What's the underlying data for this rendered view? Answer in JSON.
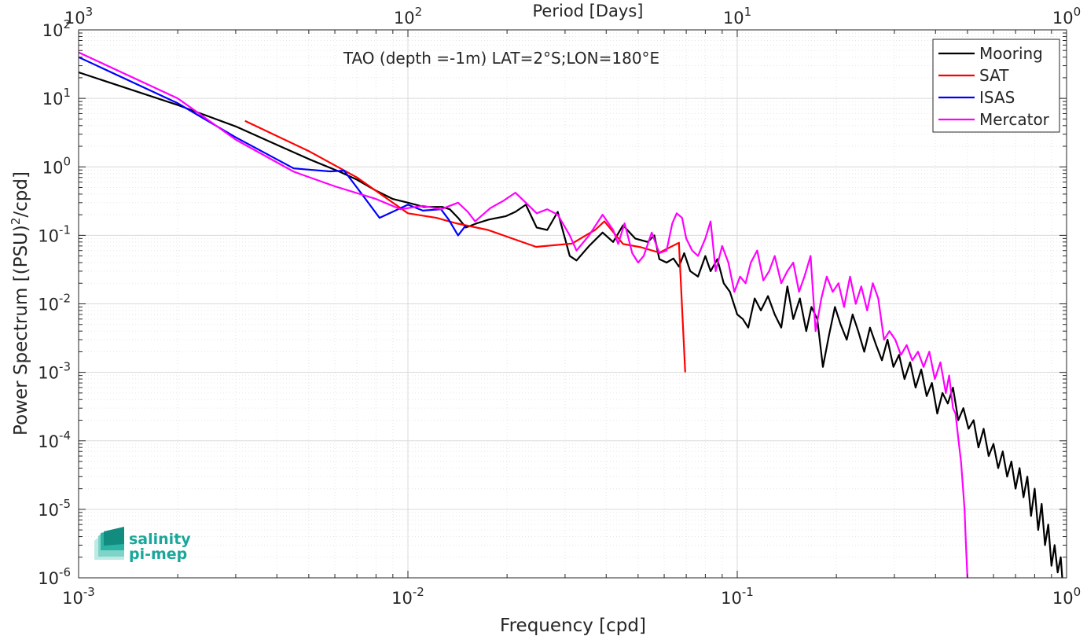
{
  "chart_data": {
    "type": "line",
    "title": "TAO (depth =-1m) LAT=2°S;LON=180°E",
    "xlabel": "Frequency [cpd]",
    "ylabel": "Power Spectrum [(PSU)",
    "ylabel_sup": "2",
    "ylabel_tail": "/cpd]",
    "top_axis_label": "Period [Days]",
    "x_scale": "log",
    "y_scale": "log",
    "xlim": [
      0.001,
      1
    ],
    "ylim": [
      1e-06,
      100
    ],
    "grid": true,
    "legend_position": "top-right",
    "x_ticks": [
      {
        "value": 0.001,
        "base": "10",
        "exp": "-3"
      },
      {
        "value": 0.01,
        "base": "10",
        "exp": "-2"
      },
      {
        "value": 0.1,
        "base": "10",
        "exp": "-1"
      },
      {
        "value": 1,
        "base": "10",
        "exp": "0"
      }
    ],
    "top_ticks": [
      {
        "value": 0.001,
        "base": "10",
        "exp": "3"
      },
      {
        "value": 0.01,
        "base": "10",
        "exp": "2"
      },
      {
        "value": 0.1,
        "base": "10",
        "exp": "1"
      },
      {
        "value": 1,
        "base": "10",
        "exp": "0"
      }
    ],
    "y_ticks": [
      {
        "value": 100,
        "base": "10",
        "exp": "2"
      },
      {
        "value": 10,
        "base": "10",
        "exp": "1"
      },
      {
        "value": 1,
        "base": "10",
        "exp": "0"
      },
      {
        "value": 0.1,
        "base": "10",
        "exp": "-1"
      },
      {
        "value": 0.01,
        "base": "10",
        "exp": "-2"
      },
      {
        "value": 0.001,
        "base": "10",
        "exp": "-3"
      },
      {
        "value": 0.0001,
        "base": "10",
        "exp": "-4"
      },
      {
        "value": 1e-05,
        "base": "10",
        "exp": "-5"
      },
      {
        "value": 1e-06,
        "base": "10",
        "exp": "-6"
      }
    ],
    "series": [
      {
        "name": "Mooring",
        "color": "#000000",
        "points": [
          [
            0.001,
            24
          ],
          [
            0.002,
            8
          ],
          [
            0.003,
            3.9
          ],
          [
            0.004,
            2.1
          ],
          [
            0.005,
            1.3
          ],
          [
            0.0062,
            0.85
          ],
          [
            0.007,
            0.65
          ],
          [
            0.008,
            0.45
          ],
          [
            0.009,
            0.34
          ],
          [
            0.01,
            0.3
          ],
          [
            0.0112,
            0.26
          ],
          [
            0.0127,
            0.26
          ],
          [
            0.0134,
            0.24
          ],
          [
            0.0142,
            0.18
          ],
          [
            0.015,
            0.13
          ],
          [
            0.0162,
            0.15
          ],
          [
            0.0176,
            0.17
          ],
          [
            0.0198,
            0.19
          ],
          [
            0.0212,
            0.22
          ],
          [
            0.0228,
            0.28
          ],
          [
            0.0246,
            0.13
          ],
          [
            0.0265,
            0.12
          ],
          [
            0.0285,
            0.22
          ],
          [
            0.031,
            0.05
          ],
          [
            0.0325,
            0.043
          ],
          [
            0.0355,
            0.07
          ],
          [
            0.039,
            0.11
          ],
          [
            0.042,
            0.08
          ],
          [
            0.045,
            0.14
          ],
          [
            0.049,
            0.09
          ],
          [
            0.0535,
            0.08
          ],
          [
            0.056,
            0.1
          ],
          [
            0.058,
            0.045
          ],
          [
            0.061,
            0.04
          ],
          [
            0.064,
            0.046
          ],
          [
            0.0665,
            0.035
          ],
          [
            0.069,
            0.055
          ],
          [
            0.072,
            0.03
          ],
          [
            0.076,
            0.025
          ],
          [
            0.08,
            0.05
          ],
          [
            0.083,
            0.03
          ],
          [
            0.087,
            0.045
          ],
          [
            0.091,
            0.02
          ],
          [
            0.095,
            0.015
          ],
          [
            0.1,
            0.007
          ],
          [
            0.104,
            0.006
          ],
          [
            0.108,
            0.0045
          ],
          [
            0.113,
            0.012
          ],
          [
            0.118,
            0.008
          ],
          [
            0.124,
            0.013
          ],
          [
            0.13,
            0.007
          ],
          [
            0.136,
            0.0045
          ],
          [
            0.142,
            0.018
          ],
          [
            0.148,
            0.006
          ],
          [
            0.155,
            0.012
          ],
          [
            0.162,
            0.004
          ],
          [
            0.168,
            0.009
          ],
          [
            0.175,
            0.006
          ],
          [
            0.182,
            0.0012
          ],
          [
            0.19,
            0.0035
          ],
          [
            0.198,
            0.009
          ],
          [
            0.206,
            0.005
          ],
          [
            0.215,
            0.003
          ],
          [
            0.224,
            0.007
          ],
          [
            0.233,
            0.004
          ],
          [
            0.243,
            0.002
          ],
          [
            0.253,
            0.0045
          ],
          [
            0.264,
            0.0025
          ],
          [
            0.275,
            0.0015
          ],
          [
            0.286,
            0.003
          ],
          [
            0.298,
            0.0012
          ],
          [
            0.31,
            0.0018
          ],
          [
            0.322,
            0.0008
          ],
          [
            0.335,
            0.0014
          ],
          [
            0.348,
            0.0006
          ],
          [
            0.362,
            0.0011
          ],
          [
            0.376,
            0.00045
          ],
          [
            0.39,
            0.0007
          ],
          [
            0.405,
            0.00025
          ],
          [
            0.42,
            0.0005
          ],
          [
            0.436,
            0.00035
          ],
          [
            0.452,
            0.0006
          ],
          [
            0.469,
            0.0002
          ],
          [
            0.486,
            0.0003
          ],
          [
            0.504,
            0.00015
          ],
          [
            0.522,
            0.0002
          ],
          [
            0.54,
            8e-05
          ],
          [
            0.56,
            0.00015
          ],
          [
            0.58,
            6e-05
          ],
          [
            0.6,
            9e-05
          ],
          [
            0.62,
            4e-05
          ],
          [
            0.64,
            7e-05
          ],
          [
            0.66,
            3e-05
          ],
          [
            0.68,
            5e-05
          ],
          [
            0.7,
            2e-05
          ],
          [
            0.72,
            4e-05
          ],
          [
            0.74,
            1.5e-05
          ],
          [
            0.76,
            3e-05
          ],
          [
            0.78,
            8e-06
          ],
          [
            0.8,
            2e-05
          ],
          [
            0.82,
            5e-06
          ],
          [
            0.84,
            1.2e-05
          ],
          [
            0.86,
            3e-06
          ],
          [
            0.88,
            6e-06
          ],
          [
            0.9,
            1.5e-06
          ],
          [
            0.92,
            3e-06
          ],
          [
            0.94,
            1.2e-06
          ],
          [
            0.96,
            2e-06
          ],
          [
            0.97,
            1e-06
          ]
        ]
      },
      {
        "name": "SAT",
        "color": "#ff0000",
        "points": [
          [
            0.0032,
            4.7
          ],
          [
            0.005,
            1.7
          ],
          [
            0.007,
            0.7
          ],
          [
            0.01,
            0.21
          ],
          [
            0.0122,
            0.18
          ],
          [
            0.014,
            0.15
          ],
          [
            0.0175,
            0.12
          ],
          [
            0.0245,
            0.068
          ],
          [
            0.0315,
            0.076
          ],
          [
            0.037,
            0.12
          ],
          [
            0.0395,
            0.16
          ],
          [
            0.045,
            0.075
          ],
          [
            0.051,
            0.067
          ],
          [
            0.058,
            0.056
          ],
          [
            0.0665,
            0.078
          ],
          [
            0.0695,
            0.001
          ]
        ]
      },
      {
        "name": "ISAS",
        "color": "#0000ff",
        "points": [
          [
            0.001,
            40
          ],
          [
            0.002,
            8.5
          ],
          [
            0.003,
            2.7
          ],
          [
            0.0045,
            0.95
          ],
          [
            0.0058,
            0.86
          ],
          [
            0.0064,
            0.88
          ],
          [
            0.007,
            0.5
          ],
          [
            0.0082,
            0.18
          ],
          [
            0.01,
            0.28
          ],
          [
            0.0111,
            0.23
          ],
          [
            0.0126,
            0.24
          ],
          [
            0.0133,
            0.17
          ],
          [
            0.0142,
            0.1
          ],
          [
            0.015,
            0.14
          ]
        ]
      },
      {
        "name": "Mercator",
        "color": "#ff00ff",
        "points": [
          [
            0.001,
            47
          ],
          [
            0.002,
            10
          ],
          [
            0.003,
            2.5
          ],
          [
            0.0045,
            0.85
          ],
          [
            0.006,
            0.52
          ],
          [
            0.008,
            0.34
          ],
          [
            0.0095,
            0.24
          ],
          [
            0.0111,
            0.27
          ],
          [
            0.0126,
            0.24
          ],
          [
            0.0134,
            0.27
          ],
          [
            0.0142,
            0.3
          ],
          [
            0.0152,
            0.22
          ],
          [
            0.016,
            0.16
          ],
          [
            0.0178,
            0.25
          ],
          [
            0.0195,
            0.32
          ],
          [
            0.0212,
            0.42
          ],
          [
            0.0228,
            0.3
          ],
          [
            0.0246,
            0.21
          ],
          [
            0.0265,
            0.24
          ],
          [
            0.0285,
            0.2
          ],
          [
            0.031,
            0.1
          ],
          [
            0.0325,
            0.06
          ],
          [
            0.0355,
            0.1
          ],
          [
            0.039,
            0.2
          ],
          [
            0.042,
            0.12
          ],
          [
            0.0435,
            0.075
          ],
          [
            0.0455,
            0.15
          ],
          [
            0.048,
            0.055
          ],
          [
            0.05,
            0.04
          ],
          [
            0.052,
            0.05
          ],
          [
            0.055,
            0.11
          ],
          [
            0.058,
            0.055
          ],
          [
            0.061,
            0.06
          ],
          [
            0.0635,
            0.15
          ],
          [
            0.0655,
            0.21
          ],
          [
            0.068,
            0.18
          ],
          [
            0.07,
            0.09
          ],
          [
            0.073,
            0.06
          ],
          [
            0.076,
            0.05
          ],
          [
            0.08,
            0.09
          ],
          [
            0.083,
            0.16
          ],
          [
            0.086,
            0.03
          ],
          [
            0.09,
            0.07
          ],
          [
            0.094,
            0.04
          ],
          [
            0.098,
            0.015
          ],
          [
            0.102,
            0.025
          ],
          [
            0.106,
            0.02
          ],
          [
            0.11,
            0.04
          ],
          [
            0.115,
            0.06
          ],
          [
            0.12,
            0.022
          ],
          [
            0.125,
            0.03
          ],
          [
            0.13,
            0.05
          ],
          [
            0.136,
            0.02
          ],
          [
            0.142,
            0.03
          ],
          [
            0.148,
            0.04
          ],
          [
            0.154,
            0.015
          ],
          [
            0.16,
            0.025
          ],
          [
            0.167,
            0.05
          ],
          [
            0.173,
            0.004
          ],
          [
            0.18,
            0.012
          ],
          [
            0.187,
            0.025
          ],
          [
            0.195,
            0.015
          ],
          [
            0.203,
            0.02
          ],
          [
            0.211,
            0.009
          ],
          [
            0.22,
            0.025
          ],
          [
            0.229,
            0.01
          ],
          [
            0.238,
            0.018
          ],
          [
            0.248,
            0.008
          ],
          [
            0.258,
            0.02
          ],
          [
            0.268,
            0.012
          ],
          [
            0.279,
            0.003
          ],
          [
            0.29,
            0.004
          ],
          [
            0.302,
            0.003
          ],
          [
            0.314,
            0.0018
          ],
          [
            0.327,
            0.0025
          ],
          [
            0.34,
            0.0015
          ],
          [
            0.354,
            0.002
          ],
          [
            0.368,
            0.0012
          ],
          [
            0.383,
            0.002
          ],
          [
            0.398,
            0.0008
          ],
          [
            0.414,
            0.0014
          ],
          [
            0.43,
            0.0005
          ],
          [
            0.44,
            0.0009
          ],
          [
            0.452,
            0.0003
          ],
          [
            0.46,
            0.00025
          ],
          [
            0.47,
            0.0001
          ],
          [
            0.478,
            5e-05
          ],
          [
            0.485,
            2e-05
          ],
          [
            0.49,
            1e-05
          ],
          [
            0.495,
            3e-06
          ],
          [
            0.5,
            1e-06
          ]
        ]
      }
    ]
  },
  "logo": {
    "line1": "salinity",
    "line2": "pi-mep",
    "color": "#1aa79a"
  }
}
